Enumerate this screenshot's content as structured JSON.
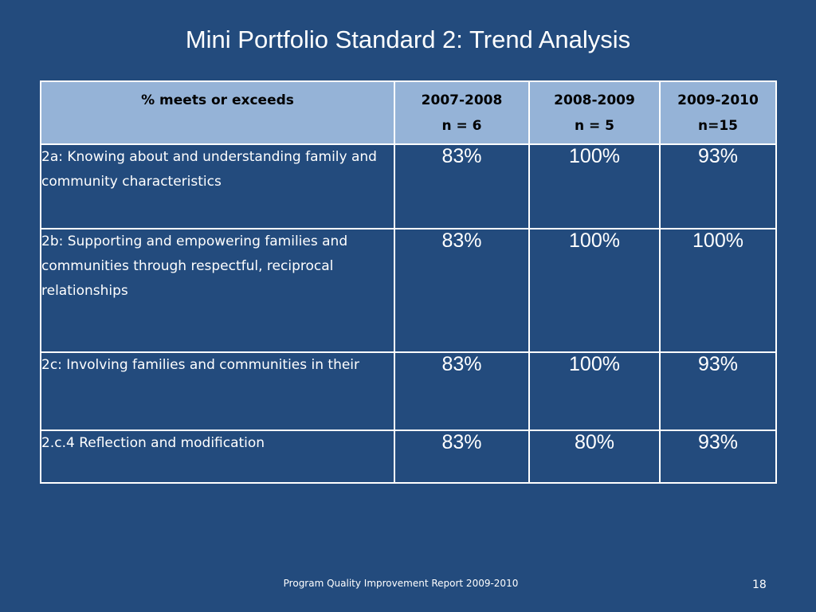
{
  "slide": {
    "title": "Mini Portfolio Standard 2: Trend Analysis",
    "footer": "Program Quality Improvement Report 2009-2010",
    "page_number": "18"
  },
  "table": {
    "headers": [
      {
        "line1": "% meets or exceeds",
        "line2": ""
      },
      {
        "line1": "2007-2008",
        "line2": "n = 6"
      },
      {
        "line1": "2008-2009",
        "line2": "n = 5"
      },
      {
        "line1": "2009-2010",
        "line2": "n=15"
      }
    ],
    "rows": [
      {
        "label": "2a: Knowing about and understanding family and community characteristics",
        "values": [
          "83%",
          "100%",
          "93%"
        ]
      },
      {
        "label": "2b: Supporting and empowering families and communities through respectful, reciprocal relationships",
        "values": [
          "83%",
          "100%",
          "100%"
        ]
      },
      {
        "label": "2c: Involving families and communities in their",
        "values": [
          "83%",
          "100%",
          "93%"
        ]
      },
      {
        "label": "2.c.4 Reflection and modification",
        "values": [
          "83%",
          "80%",
          "93%"
        ]
      }
    ]
  }
}
